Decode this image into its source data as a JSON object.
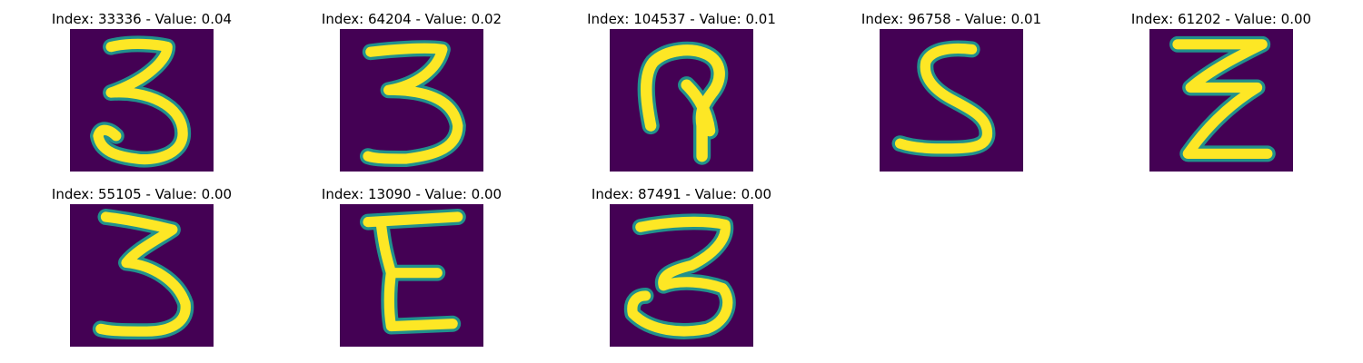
{
  "colors": {
    "background": "#440154",
    "stroke_mid": "#21918c",
    "stroke_high": "#fde725",
    "stroke_edge": "#5ec962"
  },
  "panels": [
    {
      "title": "Index: 33336 - Value: 0.04",
      "glyph": "3"
    },
    {
      "title": "Index: 64204 - Value: 0.02",
      "glyph": "3"
    },
    {
      "title": "Index: 104537 - Value: 0.01",
      "glyph": "hook"
    },
    {
      "title": "Index: 96758 - Value: 0.01",
      "glyph": "S"
    },
    {
      "title": "Index: 61202 - Value: 0.00",
      "glyph": "Z"
    },
    {
      "title": "Index: 55105 - Value: 0.00",
      "glyph": "3b"
    },
    {
      "title": "Index: 13090 - Value: 0.00",
      "glyph": "E"
    },
    {
      "title": "Index: 87491 - Value: 0.00",
      "glyph": "3c"
    }
  ]
}
